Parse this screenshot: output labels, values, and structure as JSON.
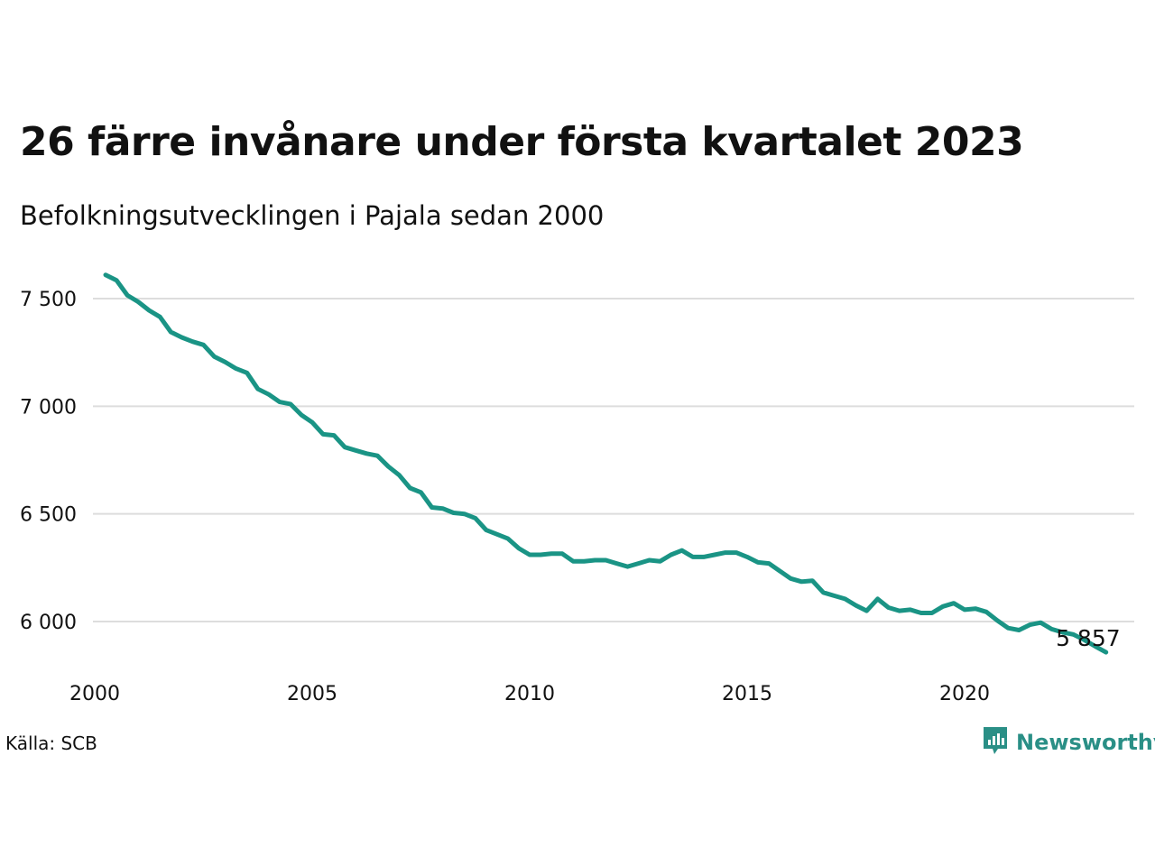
{
  "header": {
    "title": "26 färre invånare under första kvartalet 2023",
    "subtitle": "Befolkningsutvecklingen i Pajala sedan 2000"
  },
  "footer": {
    "source": "Källa: SCB",
    "brand": "Newsworthy",
    "brand_icon": "newsworthy-logo-icon"
  },
  "colors": {
    "line": "#1a9485",
    "grid": "#dddddd",
    "brand": "#2a8f86"
  },
  "chart_data": {
    "type": "line",
    "title": "26 färre invånare under första kvartalet 2023",
    "subtitle": "Befolkningsutvecklingen i Pajala sedan 2000",
    "xlabel": "",
    "ylabel": "",
    "xlim": [
      2000,
      2023.6
    ],
    "ylim": [
      5810,
      7640
    ],
    "x_ticks": [
      2000,
      2005,
      2010,
      2015,
      2020
    ],
    "x_tick_labels": [
      "2000",
      "2005",
      "2010",
      "2015",
      "2020"
    ],
    "y_ticks": [
      6000,
      6500,
      7000,
      7500
    ],
    "y_tick_labels": [
      "6 000",
      "6 500",
      "7 000",
      "7 500"
    ],
    "grid": true,
    "end_label": "5 857",
    "series": [
      {
        "x": [
          2000.25,
          2000.5,
          2000.75,
          2001.0,
          2001.25,
          2001.5,
          2001.75,
          2002.0,
          2002.25,
          2002.5,
          2002.75,
          2003.0,
          2003.25,
          2003.5,
          2003.75,
          2004.0,
          2004.25,
          2004.5,
          2004.75,
          2005.0,
          2005.25,
          2005.5,
          2005.75,
          2006.0,
          2006.25,
          2006.5,
          2006.75,
          2007.0,
          2007.25,
          2007.5,
          2007.75,
          2008.0,
          2008.25,
          2008.5,
          2008.75,
          2009.0,
          2009.25,
          2009.5,
          2009.75,
          2010.0,
          2010.25,
          2010.5,
          2010.75,
          2011.0,
          2011.25,
          2011.5,
          2011.75,
          2012.0,
          2012.25,
          2012.5,
          2012.75,
          2013.0,
          2013.25,
          2013.5,
          2013.75,
          2014.0,
          2014.25,
          2014.5,
          2014.75,
          2015.0,
          2015.25,
          2015.5,
          2015.75,
          2016.0,
          2016.25,
          2016.5,
          2016.75,
          2017.0,
          2017.25,
          2017.5,
          2017.75,
          2018.0,
          2018.25,
          2018.5,
          2018.75,
          2019.0,
          2019.25,
          2019.5,
          2019.75,
          2020.0,
          2020.25,
          2020.5,
          2020.75,
          2021.0,
          2021.25,
          2021.5,
          2021.75,
          2022.0,
          2022.25,
          2022.5,
          2022.75,
          2023.0,
          2023.25
        ],
        "values": [
          7610,
          7585,
          7515,
          7485,
          7445,
          7415,
          7345,
          7320,
          7300,
          7285,
          7230,
          7205,
          7175,
          7155,
          7080,
          7055,
          7020,
          7010,
          6960,
          6925,
          6870,
          6865,
          6810,
          6795,
          6780,
          6770,
          6720,
          6680,
          6620,
          6600,
          6530,
          6525,
          6505,
          6500,
          6480,
          6425,
          6405,
          6385,
          6340,
          6310,
          6310,
          6315,
          6315,
          6280,
          6280,
          6285,
          6285,
          6270,
          6255,
          6270,
          6285,
          6280,
          6310,
          6330,
          6300,
          6300,
          6310,
          6320,
          6320,
          6300,
          6275,
          6270,
          6235,
          6200,
          6185,
          6190,
          6135,
          6120,
          6105,
          6075,
          6050,
          6105,
          6065,
          6050,
          6055,
          6040,
          6040,
          6070,
          6085,
          6055,
          6060,
          6045,
          6005,
          5970,
          5960,
          5985,
          5995,
          5965,
          5950,
          5940,
          5915,
          5885,
          5857
        ]
      }
    ]
  }
}
